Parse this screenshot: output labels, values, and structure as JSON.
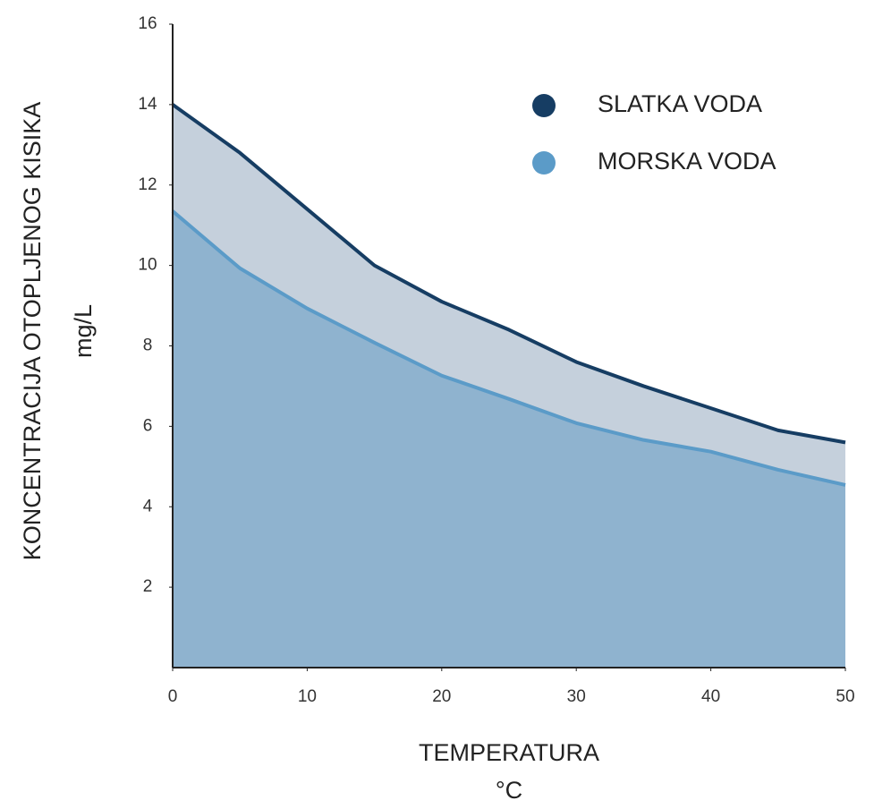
{
  "chart_data": {
    "type": "area",
    "xlabel": "TEMPERATURA",
    "xunit": "°C",
    "ylabel": "KONCENTRACIJA OTOPLJENOG KISIKA",
    "yunit": "mg/L",
    "x": [
      0,
      5,
      10,
      15,
      20,
      25,
      30,
      35,
      40,
      45,
      50
    ],
    "series": [
      {
        "name": "SLATKA VODA",
        "color": "#163d63",
        "fill": "#c5d0dc",
        "values": [
          14,
          12.8,
          11.4,
          10,
          9.1,
          8.4,
          7.6,
          7.0,
          6.45,
          5.9,
          5.6
        ]
      },
      {
        "name": "MORSKA VODA",
        "color": "#5b9bc8",
        "fill": "#8fb3cf",
        "values": [
          11.35,
          9.93,
          8.93,
          8.08,
          7.26,
          6.68,
          6.08,
          5.66,
          5.37,
          4.92,
          4.54
        ]
      }
    ],
    "xlim": [
      0,
      50
    ],
    "xticks": [
      0,
      10,
      20,
      30,
      40,
      50
    ],
    "ylim": [
      0,
      16
    ],
    "yticks": [
      2,
      4,
      6,
      8,
      10,
      12,
      14,
      16
    ],
    "legend": "upper right"
  }
}
